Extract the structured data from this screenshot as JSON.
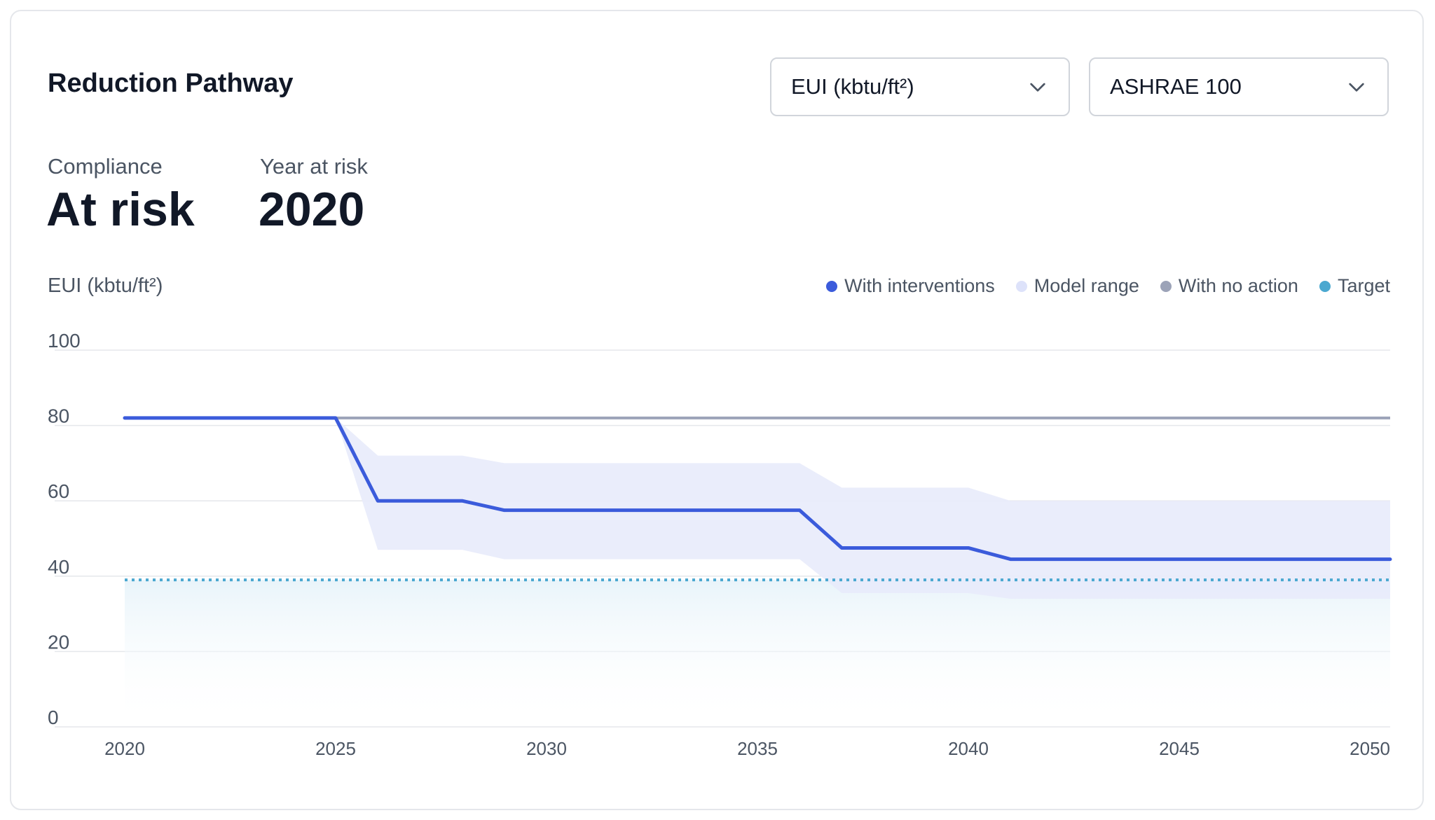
{
  "card": {
    "title": "Reduction Pathway",
    "metric_select": {
      "value": "EUI (kbtu/ft²)",
      "icon": "chevron-down-icon"
    },
    "standard_select": {
      "value": "ASHRAE 100",
      "icon": "chevron-down-icon"
    },
    "stats": [
      {
        "label": "Compliance",
        "value": "At risk"
      },
      {
        "label": "Year at risk",
        "value": "2020"
      }
    ]
  },
  "colors": {
    "interventions": "#3b5bdb",
    "model_range": "#e8ebfb",
    "no_action": "#9ca3b8",
    "target": "#4aa8d0",
    "grid": "#e5e7eb",
    "tick": "#4b5563"
  },
  "chart_data": {
    "type": "line",
    "ylabel": "EUI (kbtu/ft²)",
    "xlabel": "",
    "xlim": [
      2020,
      2050
    ],
    "ylim": [
      0,
      100
    ],
    "x_ticks": [
      2020,
      2025,
      2030,
      2035,
      2040,
      2045,
      2050
    ],
    "y_ticks": [
      0,
      20,
      40,
      60,
      80,
      100
    ],
    "grid": true,
    "legend_position": "top-right",
    "legend": [
      "With interventions",
      "Model range",
      "With no action",
      "Target"
    ],
    "series": [
      {
        "name": "With interventions",
        "x": [
          2020,
          2025,
          2026,
          2028,
          2029,
          2036,
          2037,
          2040,
          2041,
          2050
        ],
        "values": [
          82,
          82,
          60,
          60,
          57.5,
          57.5,
          47.5,
          47.5,
          44.5,
          44.5
        ]
      },
      {
        "name": "Model range",
        "x": [
          2025,
          2026,
          2028,
          2029,
          2036,
          2037,
          2040,
          2041,
          2050
        ],
        "upper": [
          82,
          72,
          72,
          70,
          70,
          63.5,
          63.5,
          60,
          60
        ],
        "lower": [
          82,
          47,
          47,
          44.5,
          44.5,
          35.5,
          35.5,
          34,
          34
        ]
      },
      {
        "name": "With no action",
        "x": [
          2020,
          2050
        ],
        "values": [
          82,
          82
        ]
      },
      {
        "name": "Target",
        "x": [
          2020,
          2050
        ],
        "values": [
          39,
          39
        ]
      }
    ]
  }
}
